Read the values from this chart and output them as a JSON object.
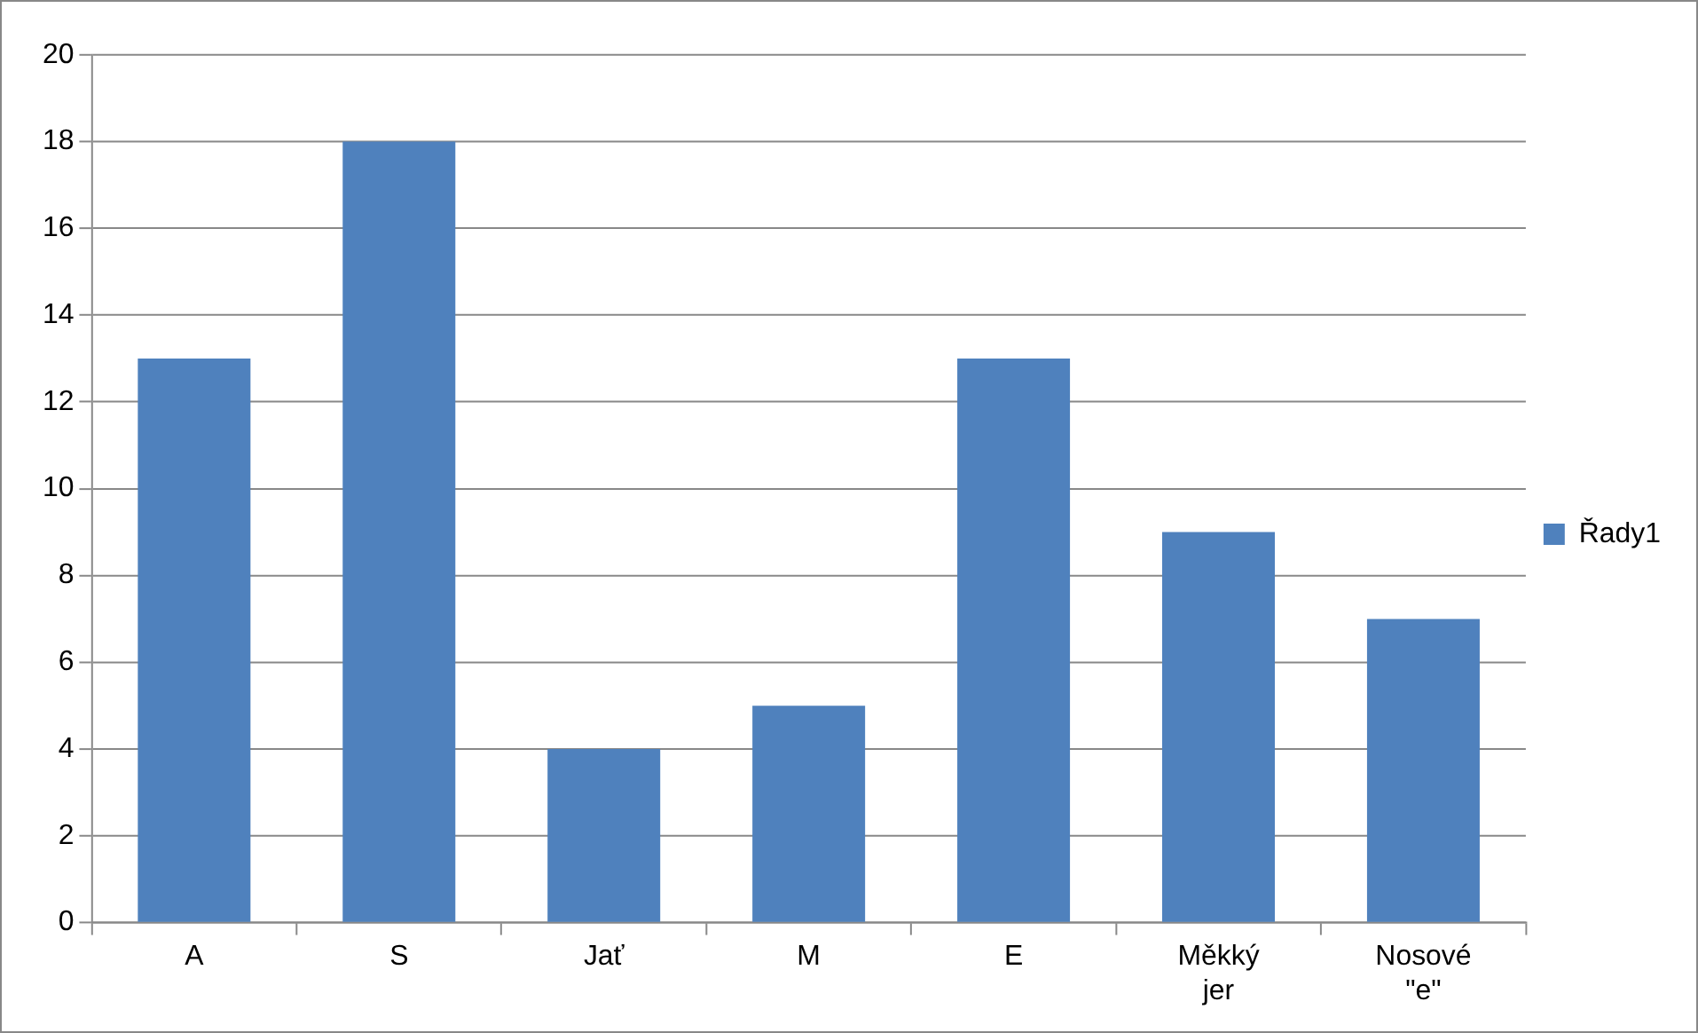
{
  "chart_data": {
    "type": "bar",
    "categories": [
      "A",
      "S",
      "Jať",
      "M",
      "E",
      "Měkký jer",
      "Nosové \"e\""
    ],
    "series": [
      {
        "name": "Řady1",
        "color": "#4f81bd",
        "values": [
          13,
          18,
          4,
          5,
          13,
          9,
          7
        ]
      }
    ],
    "ylim": [
      0,
      20
    ],
    "yticks": [
      0,
      2,
      4,
      6,
      8,
      10,
      12,
      14,
      16,
      18,
      20
    ],
    "grid": "y",
    "legend": "right"
  }
}
